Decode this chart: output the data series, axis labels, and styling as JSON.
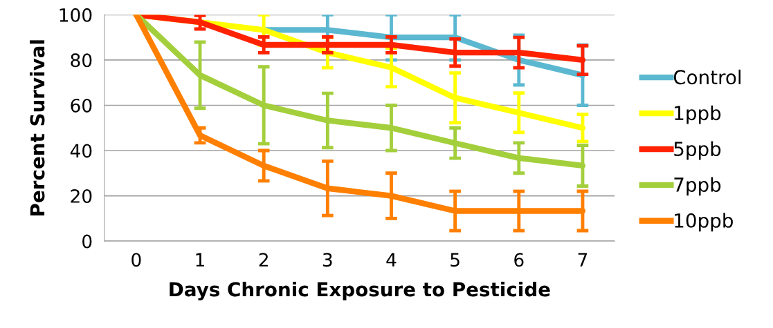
{
  "chart_data": {
    "type": "line",
    "xlabel": "Days Chronic Exposure to Pesticide",
    "ylabel": "Percent Survival",
    "categories": [
      "0",
      "1",
      "2",
      "3",
      "4",
      "5",
      "6",
      "7"
    ],
    "ylim": [
      0,
      100
    ],
    "yticks": [
      0,
      20,
      40,
      60,
      80,
      100
    ],
    "grid": "y",
    "legend": "right",
    "marker": "none",
    "line_style": "solid",
    "series": [
      {
        "name": "Control",
        "color": "#5bb8d0",
        "values": [
          null,
          null,
          93.3,
          93.3,
          90,
          90,
          80,
          73.3
        ],
        "errors": [
          null,
          null,
          null,
          6.7,
          10,
          10,
          11,
          13.3
        ]
      },
      {
        "name": "1ppb",
        "color": "#ffff00",
        "values": [
          100,
          96.7,
          93.3,
          83.3,
          76.7,
          63.3,
          56.7,
          50
        ],
        "errors": [
          null,
          null,
          6.7,
          6.7,
          8.5,
          11,
          8.7,
          6
        ]
      },
      {
        "name": "5ppb",
        "color": "#ff2200",
        "values": [
          100,
          96.7,
          86.7,
          86.7,
          86.7,
          83.3,
          83.3,
          80
        ],
        "errors": [
          null,
          3,
          3.5,
          3.5,
          3.5,
          6,
          6.7,
          6.3
        ]
      },
      {
        "name": "7ppb",
        "color": "#a4cf3c",
        "values": [
          100,
          73.3,
          60,
          53.3,
          50,
          43.3,
          36.7,
          33.3
        ],
        "errors": [
          null,
          14.6,
          17,
          12,
          10,
          6.7,
          6.7,
          9
        ]
      },
      {
        "name": "10ppb",
        "color": "#ff7f00",
        "values": [
          100,
          46.7,
          33.3,
          23.3,
          20,
          13.3,
          13.3,
          13.3
        ],
        "errors": [
          null,
          3.3,
          6.7,
          12,
          10,
          8.7,
          8.7,
          8.7
        ]
      }
    ]
  }
}
